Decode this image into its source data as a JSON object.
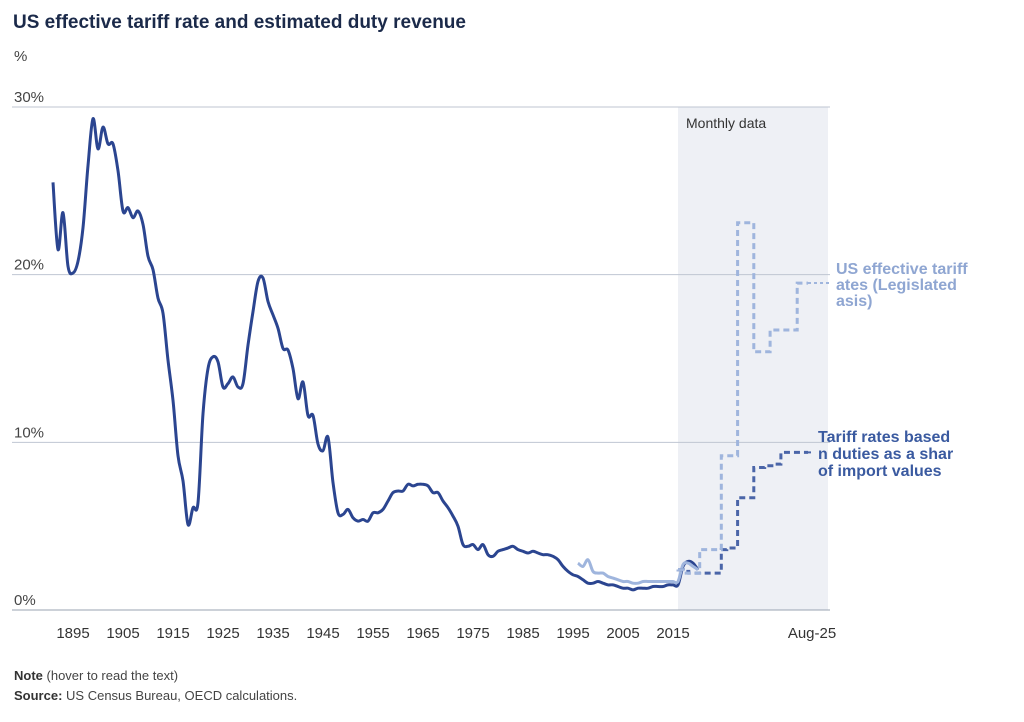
{
  "title": "US effective tariff rate and estimated duty revenue",
  "unit_label": "%",
  "note": {
    "label": "Note",
    "text": "(hover to read the text)"
  },
  "source": {
    "label": "Source:",
    "text": "US Census Bureau, OECD calculations."
  },
  "chart_data": {
    "type": "line",
    "title": "US effective tariff rate and estimated duty revenue",
    "ylabel": "%",
    "ylim": [
      0,
      30
    ],
    "y_ticks": [
      "0%",
      "10%",
      "20%",
      "30%"
    ],
    "x_ticks": [
      "1895",
      "1905",
      "1915",
      "1925",
      "1935",
      "1945",
      "1955",
      "1965",
      "1975",
      "1985",
      "1995",
      "2005",
      "2015",
      "Aug-25"
    ],
    "grid": true,
    "shaded_region": {
      "label": "Monthly data",
      "from": "2021",
      "to": "Aug-25"
    },
    "series": [
      {
        "name": "US effective tariff rates (Legislated basis)",
        "color": "#9fb5dd",
        "style": "solid (annual) / dashed (monthly)",
        "annual": [
          [
            1996,
            2.8
          ],
          [
            1997,
            2.6
          ],
          [
            1998,
            3.0
          ],
          [
            1999,
            2.3
          ],
          [
            2000,
            2.2
          ],
          [
            2001,
            2.2
          ],
          [
            2002,
            2.0
          ],
          [
            2003,
            1.9
          ],
          [
            2004,
            1.8
          ],
          [
            2005,
            1.7
          ],
          [
            2006,
            1.7
          ],
          [
            2007,
            1.6
          ],
          [
            2008,
            1.6
          ],
          [
            2009,
            1.7
          ],
          [
            2010,
            1.7
          ],
          [
            2011,
            1.7
          ],
          [
            2012,
            1.7
          ],
          [
            2013,
            1.7
          ],
          [
            2014,
            1.7
          ],
          [
            2015,
            1.7
          ],
          [
            2016,
            1.7
          ],
          [
            2017,
            2.7
          ],
          [
            2018,
            2.8
          ],
          [
            2019,
            2.6
          ],
          [
            2020,
            2.4
          ]
        ],
        "monthly": [
          "2.4",
          "2.2",
          "2.2",
          "2.2",
          "3.6",
          "3.6",
          "3.6",
          "3.6",
          "9.2",
          "9.2",
          "9.2",
          "23.1",
          "23.1",
          "23.1",
          "15.4",
          "15.4",
          "15.4",
          "16.7",
          "16.7",
          "16.7",
          "16.7",
          "16.7",
          "19.5",
          "19.5"
        ]
      },
      {
        "name": "Tariff rates based on duties as a share of import values",
        "color": "#2b4590",
        "style": "solid (annual) / dashed (monthly)",
        "annual": [
          [
            1891,
            25.5
          ],
          [
            1892,
            21.5
          ],
          [
            1893,
            23.7
          ],
          [
            1894,
            20.5
          ],
          [
            1895,
            20.1
          ],
          [
            1896,
            20.8
          ],
          [
            1897,
            22.8
          ],
          [
            1898,
            26.5
          ],
          [
            1899,
            29.3
          ],
          [
            1900,
            27.5
          ],
          [
            1901,
            28.8
          ],
          [
            1902,
            27.8
          ],
          [
            1903,
            27.8
          ],
          [
            1904,
            26.2
          ],
          [
            1905,
            23.8
          ],
          [
            1906,
            24.0
          ],
          [
            1907,
            23.4
          ],
          [
            1908,
            23.8
          ],
          [
            1909,
            23.0
          ],
          [
            1910,
            21.1
          ],
          [
            1911,
            20.3
          ],
          [
            1912,
            18.6
          ],
          [
            1913,
            17.7
          ],
          [
            1914,
            14.9
          ],
          [
            1915,
            12.5
          ],
          [
            1916,
            9.2
          ],
          [
            1917,
            7.7
          ],
          [
            1918,
            5.1
          ],
          [
            1919,
            6.1
          ],
          [
            1920,
            6.4
          ],
          [
            1921,
            11.7
          ],
          [
            1922,
            14.4
          ],
          [
            1923,
            15.1
          ],
          [
            1924,
            14.8
          ],
          [
            1925,
            13.3
          ],
          [
            1926,
            13.5
          ],
          [
            1927,
            13.9
          ],
          [
            1928,
            13.3
          ],
          [
            1929,
            13.5
          ],
          [
            1930,
            15.8
          ],
          [
            1931,
            17.8
          ],
          [
            1932,
            19.6
          ],
          [
            1933,
            19.8
          ],
          [
            1934,
            18.4
          ],
          [
            1935,
            17.6
          ],
          [
            1936,
            16.8
          ],
          [
            1937,
            15.6
          ],
          [
            1938,
            15.5
          ],
          [
            1939,
            14.4
          ],
          [
            1940,
            12.6
          ],
          [
            1941,
            13.6
          ],
          [
            1942,
            11.6
          ],
          [
            1943,
            11.6
          ],
          [
            1944,
            9.9
          ],
          [
            1945,
            9.5
          ],
          [
            1946,
            10.3
          ],
          [
            1947,
            7.6
          ],
          [
            1948,
            5.8
          ],
          [
            1949,
            5.7
          ],
          [
            1950,
            6.0
          ],
          [
            1951,
            5.5
          ],
          [
            1952,
            5.3
          ],
          [
            1953,
            5.4
          ],
          [
            1954,
            5.3
          ],
          [
            1955,
            5.8
          ],
          [
            1956,
            5.8
          ],
          [
            1957,
            6.0
          ],
          [
            1958,
            6.5
          ],
          [
            1959,
            7.0
          ],
          [
            1960,
            7.1
          ],
          [
            1961,
            7.1
          ],
          [
            1962,
            7.5
          ],
          [
            1963,
            7.4
          ],
          [
            1964,
            7.5
          ],
          [
            1965,
            7.5
          ],
          [
            1966,
            7.4
          ],
          [
            1967,
            7.0
          ],
          [
            1968,
            7.0
          ],
          [
            1969,
            6.5
          ],
          [
            1970,
            6.1
          ],
          [
            1971,
            5.6
          ],
          [
            1972,
            5.0
          ],
          [
            1973,
            3.9
          ],
          [
            1974,
            3.8
          ],
          [
            1975,
            3.9
          ],
          [
            1976,
            3.6
          ],
          [
            1977,
            3.9
          ],
          [
            1978,
            3.3
          ],
          [
            1979,
            3.2
          ],
          [
            1980,
            3.5
          ],
          [
            1981,
            3.6
          ],
          [
            1982,
            3.7
          ],
          [
            1983,
            3.8
          ],
          [
            1984,
            3.6
          ],
          [
            1985,
            3.5
          ],
          [
            1986,
            3.4
          ],
          [
            1987,
            3.5
          ],
          [
            1988,
            3.4
          ],
          [
            1989,
            3.3
          ],
          [
            1990,
            3.3
          ],
          [
            1991,
            3.2
          ],
          [
            1992,
            3.0
          ],
          [
            1993,
            2.6
          ],
          [
            1994,
            2.3
          ],
          [
            1995,
            2.1
          ],
          [
            1996,
            2.0
          ],
          [
            1997,
            1.8
          ],
          [
            1998,
            1.6
          ],
          [
            1999,
            1.6
          ],
          [
            2000,
            1.7
          ],
          [
            2001,
            1.6
          ],
          [
            2002,
            1.5
          ],
          [
            2003,
            1.5
          ],
          [
            2004,
            1.4
          ],
          [
            2005,
            1.3
          ],
          [
            2006,
            1.3
          ],
          [
            2007,
            1.2
          ],
          [
            2008,
            1.3
          ],
          [
            2009,
            1.3
          ],
          [
            2010,
            1.3
          ],
          [
            2011,
            1.4
          ],
          [
            2012,
            1.4
          ],
          [
            2013,
            1.4
          ],
          [
            2014,
            1.5
          ],
          [
            2015,
            1.5
          ],
          [
            2016,
            1.5
          ],
          [
            2017,
            2.6
          ],
          [
            2018,
            2.9
          ],
          [
            2019,
            2.8
          ],
          [
            2020,
            2.4
          ]
        ],
        "monthly": [
          "2.4",
          "2.3",
          "2.2",
          "2.2",
          "2.2",
          "2.2",
          "2.2",
          "2.2",
          "3.6",
          "3.7",
          "3.7",
          "6.7",
          "6.7",
          "6.7",
          "8.5",
          "8.5",
          "8.6",
          "8.6",
          "8.7",
          "9.4",
          "9.4",
          "9.4",
          "9.4",
          "9.4"
        ]
      }
    ]
  }
}
